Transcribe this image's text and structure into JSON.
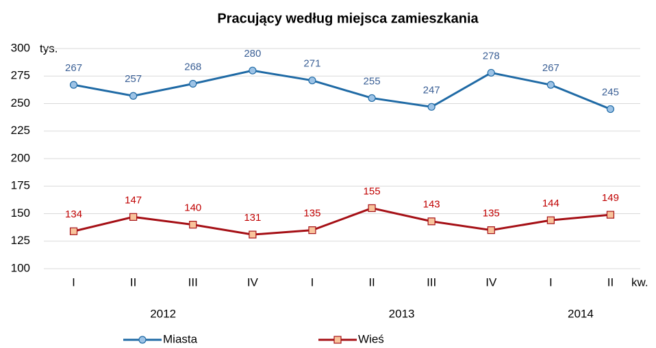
{
  "chart_data": {
    "type": "line",
    "title": "Pracujący według miejsca zamieszkania",
    "y_unit_label": "tys.",
    "x_unit_label": "kw.",
    "categories": [
      "I",
      "II",
      "III",
      "IV",
      "I",
      "II",
      "III",
      "IV",
      "I",
      "II"
    ],
    "category_groups": [
      {
        "label": "2012",
        "count": 4
      },
      {
        "label": "2013",
        "count": 4
      },
      {
        "label": "2014",
        "count": 2
      }
    ],
    "series": [
      {
        "name": "Miasta",
        "color": "#1f6aa5",
        "marker": "circle",
        "marker_fill": "#9dc3e6",
        "label_color": "#3a5f95",
        "values": [
          267,
          257,
          268,
          280,
          271,
          255,
          247,
          278,
          267,
          245
        ]
      },
      {
        "name": "Wieś",
        "color": "#a50f15",
        "marker": "square",
        "marker_fill": "#f8c49c",
        "label_color": "#c00000",
        "values": [
          134,
          147,
          140,
          131,
          135,
          155,
          143,
          135,
          144,
          149
        ]
      }
    ],
    "ylim": [
      100,
      300
    ],
    "yticks": [
      100,
      125,
      150,
      175,
      200,
      225,
      250,
      275,
      300
    ],
    "grid": true,
    "legend": "bottom"
  }
}
